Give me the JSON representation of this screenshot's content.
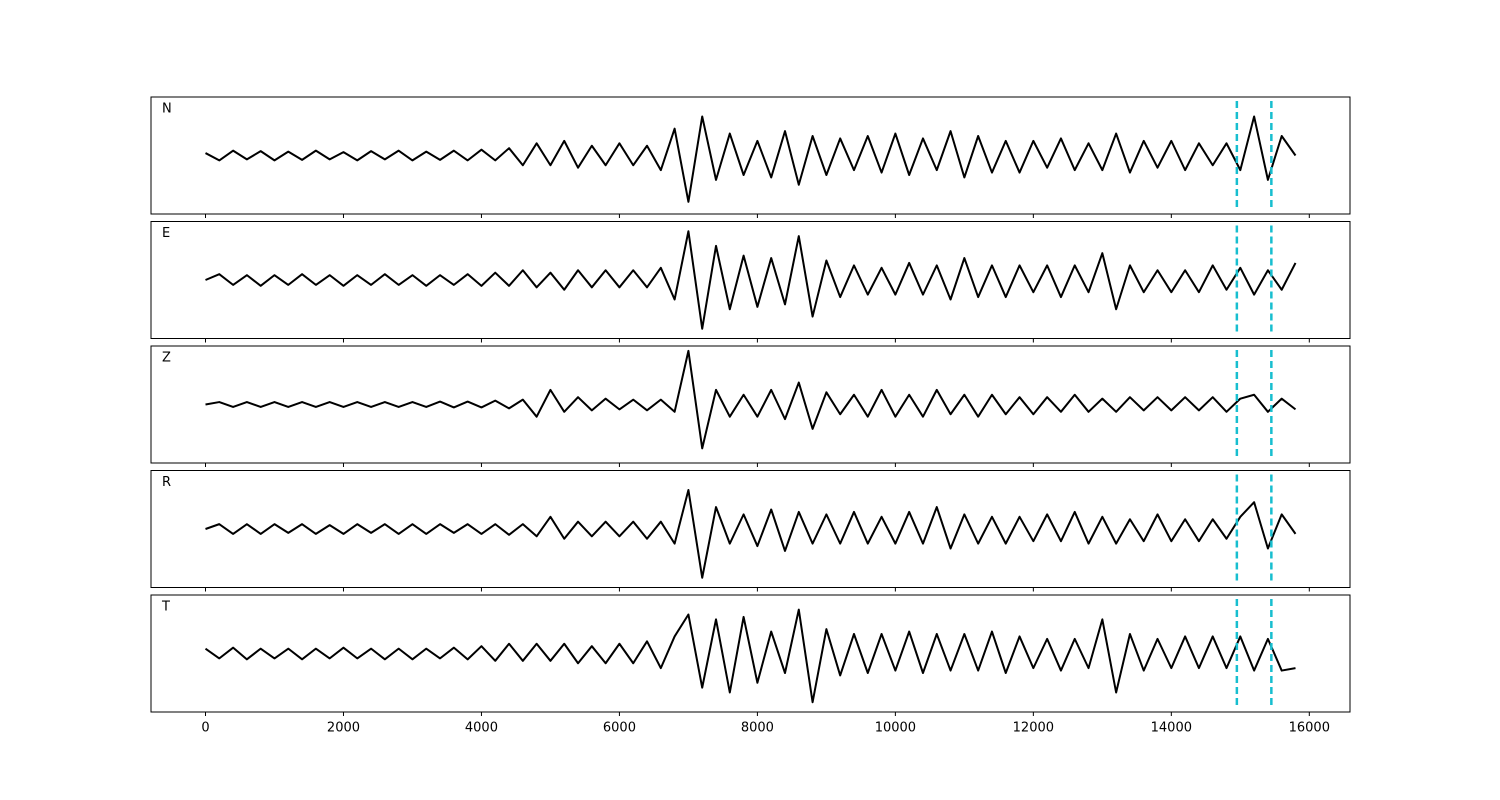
{
  "chart_data": [
    {
      "type": "line",
      "label": "N",
      "color": "#000000",
      "x": [
        0,
        200,
        400,
        600,
        800,
        1000,
        1200,
        1400,
        1600,
        1800,
        2000,
        2200,
        2400,
        2600,
        2800,
        3000,
        3200,
        3400,
        3600,
        3800,
        4000,
        4200,
        4400,
        4600,
        4800,
        5000,
        5200,
        5400,
        5600,
        5800,
        6000,
        6200,
        6400,
        6600,
        6800,
        7000,
        7200,
        7400,
        7600,
        7800,
        8000,
        8200,
        8400,
        8600,
        8800,
        9000,
        9200,
        9400,
        9600,
        9800,
        10000,
        10200,
        10400,
        10600,
        10800,
        11000,
        11200,
        11400,
        11600,
        11800,
        12000,
        12200,
        12400,
        12600,
        12800,
        13000,
        13200,
        13400,
        13600,
        13800,
        14000,
        14200,
        14400,
        14600,
        14800,
        15000,
        15200,
        15400,
        15600,
        15800
      ],
      "values": [
        0.05,
        -0.1,
        0.1,
        -0.08,
        0.09,
        -0.1,
        0.08,
        -0.09,
        0.1,
        -0.08,
        0.07,
        -0.1,
        0.09,
        -0.08,
        0.1,
        -0.1,
        0.08,
        -0.09,
        0.1,
        -0.1,
        0.12,
        -0.1,
        0.15,
        -0.2,
        0.25,
        -0.2,
        0.3,
        -0.25,
        0.2,
        -0.2,
        0.25,
        -0.2,
        0.2,
        -0.3,
        0.55,
        -0.95,
        0.8,
        -0.5,
        0.45,
        -0.4,
        0.3,
        -0.45,
        0.5,
        -0.6,
        0.4,
        -0.4,
        0.35,
        -0.3,
        0.4,
        -0.35,
        0.45,
        -0.4,
        0.35,
        -0.3,
        0.5,
        -0.45,
        0.4,
        -0.35,
        0.3,
        -0.35,
        0.3,
        -0.25,
        0.35,
        -0.3,
        0.25,
        -0.3,
        0.45,
        -0.35,
        0.3,
        -0.25,
        0.3,
        -0.3,
        0.25,
        -0.2,
        0.25,
        -0.3,
        0.8,
        -0.5,
        0.4,
        0.0
      ],
      "xlim": [
        -790,
        16590
      ],
      "ylim": [
        -1.2,
        1.2
      ],
      "xticks": [
        0,
        2000,
        4000,
        6000,
        8000,
        10000,
        12000,
        14000,
        16000
      ],
      "show_xtick_labels": false,
      "vlines": [
        14950,
        15450
      ],
      "vline_color": "#17becf"
    },
    {
      "type": "line",
      "label": "E",
      "color": "#000000",
      "x": [
        0,
        200,
        400,
        600,
        800,
        1000,
        1200,
        1400,
        1600,
        1800,
        2000,
        2200,
        2400,
        2600,
        2800,
        3000,
        3200,
        3400,
        3600,
        3800,
        4000,
        4200,
        4400,
        4600,
        4800,
        5000,
        5200,
        5400,
        5600,
        5800,
        6000,
        6200,
        6400,
        6600,
        6800,
        7000,
        7200,
        7400,
        7600,
        7800,
        8000,
        8200,
        8400,
        8600,
        8800,
        9000,
        9200,
        9400,
        9600,
        9800,
        10000,
        10200,
        10400,
        10600,
        10800,
        11000,
        11200,
        11400,
        11600,
        11800,
        12000,
        12200,
        12400,
        12600,
        12800,
        13000,
        13200,
        13400,
        13600,
        13800,
        14000,
        14200,
        14400,
        14600,
        14800,
        15000,
        15200,
        15400,
        15600,
        15800
      ],
      "values": [
        0.0,
        0.12,
        -0.1,
        0.1,
        -0.12,
        0.1,
        -0.1,
        0.12,
        -0.1,
        0.1,
        -0.12,
        0.1,
        -0.1,
        0.12,
        -0.1,
        0.1,
        -0.12,
        0.1,
        -0.1,
        0.12,
        -0.12,
        0.15,
        -0.12,
        0.2,
        -0.15,
        0.15,
        -0.2,
        0.2,
        -0.15,
        0.2,
        -0.15,
        0.2,
        -0.15,
        0.25,
        -0.4,
        1.0,
        -1.0,
        0.7,
        -0.6,
        0.5,
        -0.55,
        0.45,
        -0.5,
        0.9,
        -0.75,
        0.4,
        -0.35,
        0.3,
        -0.3,
        0.25,
        -0.3,
        0.35,
        -0.3,
        0.3,
        -0.4,
        0.45,
        -0.35,
        0.3,
        -0.35,
        0.3,
        -0.25,
        0.3,
        -0.35,
        0.3,
        -0.25,
        0.55,
        -0.6,
        0.3,
        -0.25,
        0.2,
        -0.25,
        0.2,
        -0.25,
        0.3,
        -0.2,
        0.25,
        -0.3,
        0.2,
        -0.2,
        0.35
      ],
      "xlim": [
        -790,
        16590
      ],
      "ylim": [
        -1.2,
        1.2
      ],
      "xticks": [
        0,
        2000,
        4000,
        6000,
        8000,
        10000,
        12000,
        14000,
        16000
      ],
      "show_xtick_labels": false,
      "vlines": [
        14950,
        15450
      ],
      "vline_color": "#17becf"
    },
    {
      "type": "line",
      "label": "Z",
      "color": "#000000",
      "x": [
        0,
        200,
        400,
        600,
        800,
        1000,
        1200,
        1400,
        1600,
        1800,
        2000,
        2200,
        2400,
        2600,
        2800,
        3000,
        3200,
        3400,
        3600,
        3800,
        4000,
        4200,
        4400,
        4600,
        4800,
        5000,
        5200,
        5400,
        5600,
        5800,
        6000,
        6200,
        6400,
        6600,
        6800,
        7000,
        7200,
        7400,
        7600,
        7800,
        8000,
        8200,
        8400,
        8600,
        8800,
        9000,
        9200,
        9400,
        9600,
        9800,
        10000,
        10200,
        10400,
        10600,
        10800,
        11000,
        11200,
        11400,
        11600,
        11800,
        12000,
        12200,
        12400,
        12600,
        12800,
        13000,
        13200,
        13400,
        13600,
        13800,
        14000,
        14200,
        14400,
        14600,
        14800,
        15000,
        15200,
        15400,
        15600,
        15800
      ],
      "values": [
        0.0,
        0.05,
        -0.05,
        0.05,
        -0.05,
        0.05,
        -0.05,
        0.05,
        -0.05,
        0.05,
        -0.05,
        0.05,
        -0.05,
        0.05,
        -0.05,
        0.05,
        -0.05,
        0.06,
        -0.06,
        0.06,
        -0.06,
        0.08,
        -0.08,
        0.1,
        -0.25,
        0.3,
        -0.15,
        0.15,
        -0.12,
        0.12,
        -0.1,
        0.1,
        -0.12,
        0.1,
        -0.15,
        1.1,
        -0.9,
        0.3,
        -0.25,
        0.2,
        -0.25,
        0.3,
        -0.3,
        0.45,
        -0.5,
        0.25,
        -0.2,
        0.2,
        -0.25,
        0.3,
        -0.25,
        0.2,
        -0.25,
        0.3,
        -0.2,
        0.2,
        -0.25,
        0.2,
        -0.2,
        0.15,
        -0.2,
        0.15,
        -0.15,
        0.2,
        -0.15,
        0.12,
        -0.15,
        0.15,
        -0.12,
        0.15,
        -0.12,
        0.15,
        -0.12,
        0.15,
        -0.15,
        0.12,
        0.2,
        -0.15,
        0.12,
        -0.1
      ],
      "xlim": [
        -790,
        16590
      ],
      "ylim": [
        -1.2,
        1.2
      ],
      "xticks": [
        0,
        2000,
        4000,
        6000,
        8000,
        10000,
        12000,
        14000,
        16000
      ],
      "show_xtick_labels": false,
      "vlines": [
        14950,
        15450
      ],
      "vline_color": "#17becf"
    },
    {
      "type": "line",
      "label": "R",
      "color": "#000000",
      "x": [
        0,
        200,
        400,
        600,
        800,
        1000,
        1200,
        1400,
        1600,
        1800,
        2000,
        2200,
        2400,
        2600,
        2800,
        3000,
        3200,
        3400,
        3600,
        3800,
        4000,
        4200,
        4400,
        4600,
        4800,
        5000,
        5200,
        5400,
        5600,
        5800,
        6000,
        6200,
        6400,
        6600,
        6800,
        7000,
        7200,
        7400,
        7600,
        7800,
        8000,
        8200,
        8400,
        8600,
        8800,
        9000,
        9200,
        9400,
        9600,
        9800,
        10000,
        10200,
        10400,
        10600,
        10800,
        11000,
        11200,
        11400,
        11600,
        11800,
        12000,
        12200,
        12400,
        12600,
        12800,
        13000,
        13200,
        13400,
        13600,
        13800,
        14000,
        14200,
        14400,
        14600,
        14800,
        15000,
        15200,
        15400,
        15600,
        15800
      ],
      "values": [
        0.0,
        0.1,
        -0.1,
        0.1,
        -0.1,
        0.1,
        -0.08,
        0.1,
        -0.1,
        0.08,
        -0.1,
        0.1,
        -0.08,
        0.1,
        -0.1,
        0.1,
        -0.1,
        0.1,
        -0.08,
        0.1,
        -0.1,
        0.1,
        -0.12,
        0.1,
        -0.15,
        0.25,
        -0.2,
        0.15,
        -0.15,
        0.15,
        -0.15,
        0.15,
        -0.2,
        0.15,
        -0.3,
        0.8,
        -1.0,
        0.45,
        -0.3,
        0.3,
        -0.35,
        0.4,
        -0.45,
        0.35,
        -0.3,
        0.3,
        -0.3,
        0.35,
        -0.3,
        0.25,
        -0.3,
        0.35,
        -0.3,
        0.45,
        -0.4,
        0.3,
        -0.3,
        0.25,
        -0.3,
        0.25,
        -0.25,
        0.3,
        -0.25,
        0.35,
        -0.3,
        0.25,
        -0.3,
        0.2,
        -0.25,
        0.3,
        -0.25,
        0.2,
        -0.25,
        0.2,
        -0.2,
        0.25,
        0.55,
        -0.4,
        0.3,
        -0.1
      ],
      "xlim": [
        -790,
        16590
      ],
      "ylim": [
        -1.2,
        1.2
      ],
      "xticks": [
        0,
        2000,
        4000,
        6000,
        8000,
        10000,
        12000,
        14000,
        16000
      ],
      "show_xtick_labels": false,
      "vlines": [
        14950,
        15450
      ],
      "vline_color": "#17becf"
    },
    {
      "type": "line",
      "label": "T",
      "color": "#000000",
      "x": [
        0,
        200,
        400,
        600,
        800,
        1000,
        1200,
        1400,
        1600,
        1800,
        2000,
        2200,
        2400,
        2600,
        2800,
        3000,
        3200,
        3400,
        3600,
        3800,
        4000,
        4200,
        4400,
        4600,
        4800,
        5000,
        5200,
        5400,
        5600,
        5800,
        6000,
        6200,
        6400,
        6600,
        6800,
        7000,
        7200,
        7400,
        7600,
        7800,
        8000,
        8200,
        8400,
        8600,
        8800,
        9000,
        9200,
        9400,
        9600,
        9800,
        10000,
        10200,
        10400,
        10600,
        10800,
        11000,
        11200,
        11400,
        11600,
        11800,
        12000,
        12200,
        12400,
        12600,
        12800,
        13000,
        13200,
        13400,
        13600,
        13800,
        14000,
        14200,
        14400,
        14600,
        14800,
        15000,
        15200,
        15400,
        15600,
        15800
      ],
      "values": [
        0.1,
        -0.1,
        0.12,
        -0.12,
        0.1,
        -0.1,
        0.1,
        -0.12,
        0.1,
        -0.1,
        0.12,
        -0.1,
        0.1,
        -0.12,
        0.1,
        -0.12,
        0.1,
        -0.1,
        0.12,
        -0.12,
        0.15,
        -0.15,
        0.2,
        -0.15,
        0.2,
        -0.15,
        0.2,
        -0.2,
        0.15,
        -0.2,
        0.2,
        -0.2,
        0.25,
        -0.3,
        0.35,
        0.8,
        -0.7,
        0.7,
        -0.8,
        0.75,
        -0.6,
        0.45,
        -0.4,
        0.9,
        -1.0,
        0.5,
        -0.45,
        0.4,
        -0.4,
        0.4,
        -0.35,
        0.45,
        -0.4,
        0.4,
        -0.35,
        0.4,
        -0.35,
        0.45,
        -0.4,
        0.35,
        -0.3,
        0.3,
        -0.35,
        0.3,
        -0.3,
        0.7,
        -0.8,
        0.4,
        -0.35,
        0.3,
        -0.3,
        0.35,
        -0.3,
        0.35,
        -0.3,
        0.35,
        -0.35,
        0.3,
        -0.35,
        -0.3
      ],
      "xlim": [
        -790,
        16590
      ],
      "ylim": [
        -1.2,
        1.2
      ],
      "xticks": [
        0,
        2000,
        4000,
        6000,
        8000,
        10000,
        12000,
        14000,
        16000
      ],
      "show_xtick_labels": true,
      "vlines": [
        14950,
        15450
      ],
      "vline_color": "#17becf"
    }
  ]
}
